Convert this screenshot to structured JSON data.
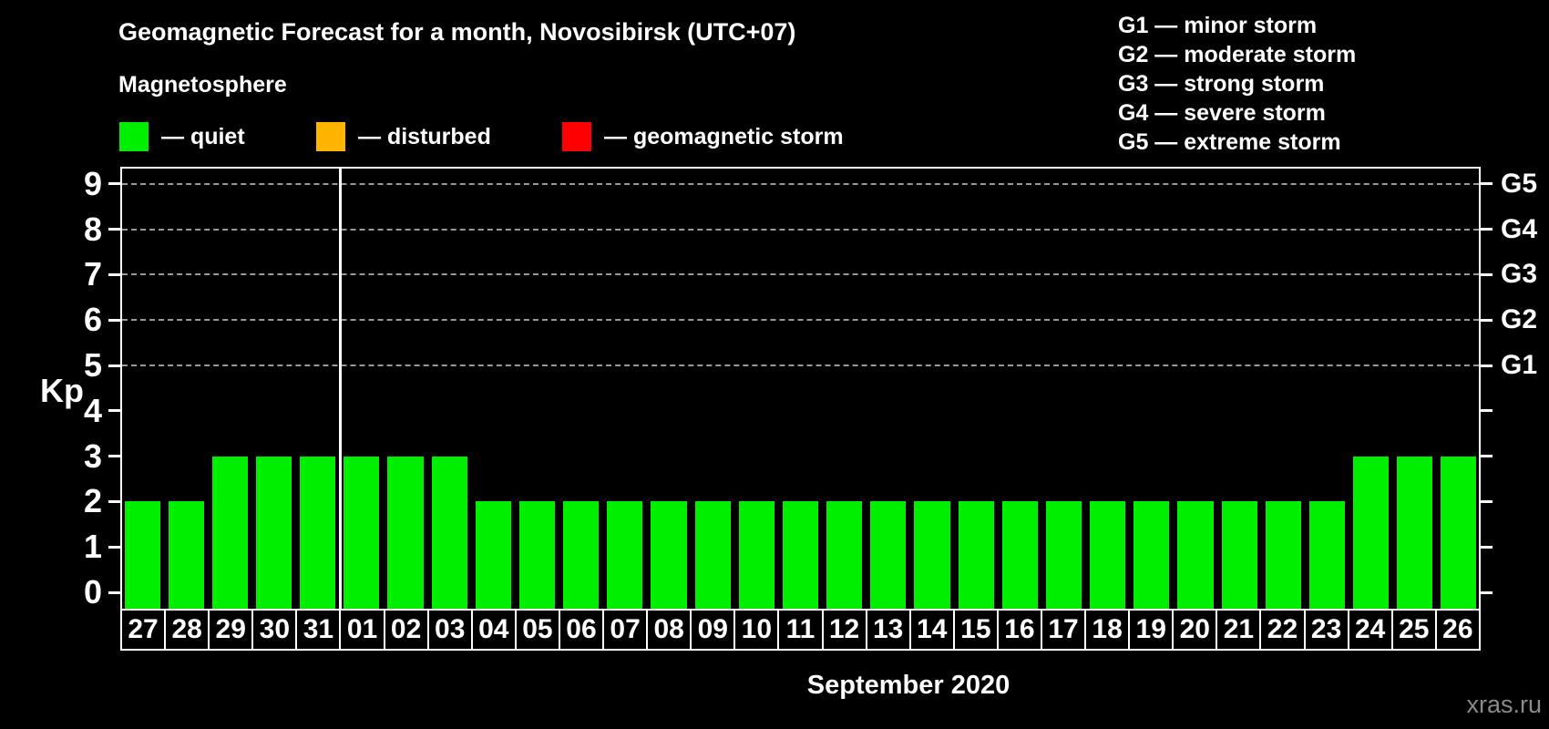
{
  "header": {
    "title": "Geomagnetic Forecast for a month, Novosibirsk (UTC+07)",
    "subtitle": "Magnetosphere",
    "legend": [
      {
        "name": "quiet",
        "label": "— quiet",
        "color": "#00ee00"
      },
      {
        "name": "disturbed",
        "label": "— disturbed",
        "color": "#ffb400"
      },
      {
        "name": "storm",
        "label": "— geomagnetic storm",
        "color": "#ff0000"
      }
    ],
    "g_scale_legend": [
      "G1 — minor storm",
      "G2 — moderate storm",
      "G3 — strong storm",
      "G4 — severe storm",
      "G5 — extreme storm"
    ]
  },
  "chart_data": {
    "type": "bar",
    "title": "Geomagnetic Forecast for a month, Novosibirsk (UTC+07)",
    "categories": [
      "27",
      "28",
      "29",
      "30",
      "31",
      "01",
      "02",
      "03",
      "04",
      "05",
      "06",
      "07",
      "08",
      "09",
      "10",
      "11",
      "12",
      "13",
      "14",
      "15",
      "16",
      "17",
      "18",
      "19",
      "20",
      "21",
      "22",
      "23",
      "24",
      "25",
      "26"
    ],
    "values": [
      2,
      2,
      3,
      3,
      3,
      3,
      3,
      3,
      2,
      2,
      2,
      2,
      2,
      2,
      2,
      2,
      2,
      2,
      2,
      2,
      2,
      2,
      2,
      2,
      2,
      2,
      2,
      2,
      3,
      3,
      3
    ],
    "ylabel": "Kp",
    "xlabel": "September 2020",
    "yticks": [
      0,
      1,
      2,
      3,
      4,
      5,
      6,
      7,
      8,
      9
    ],
    "ylim": [
      0,
      9
    ],
    "grid": "horizontal dashed at storm levels only",
    "gridlines_at": [
      5,
      6,
      7,
      8,
      9
    ],
    "right_axis_labels": [
      {
        "label": "G1",
        "value": 5
      },
      {
        "label": "G2",
        "value": 6
      },
      {
        "label": "G3",
        "value": 7
      },
      {
        "label": "G4",
        "value": 8
      },
      {
        "label": "G5",
        "value": 9
      }
    ],
    "month_divider_index": 5,
    "legend_position": "top"
  },
  "footer": {
    "watermark": "xras.ru"
  }
}
